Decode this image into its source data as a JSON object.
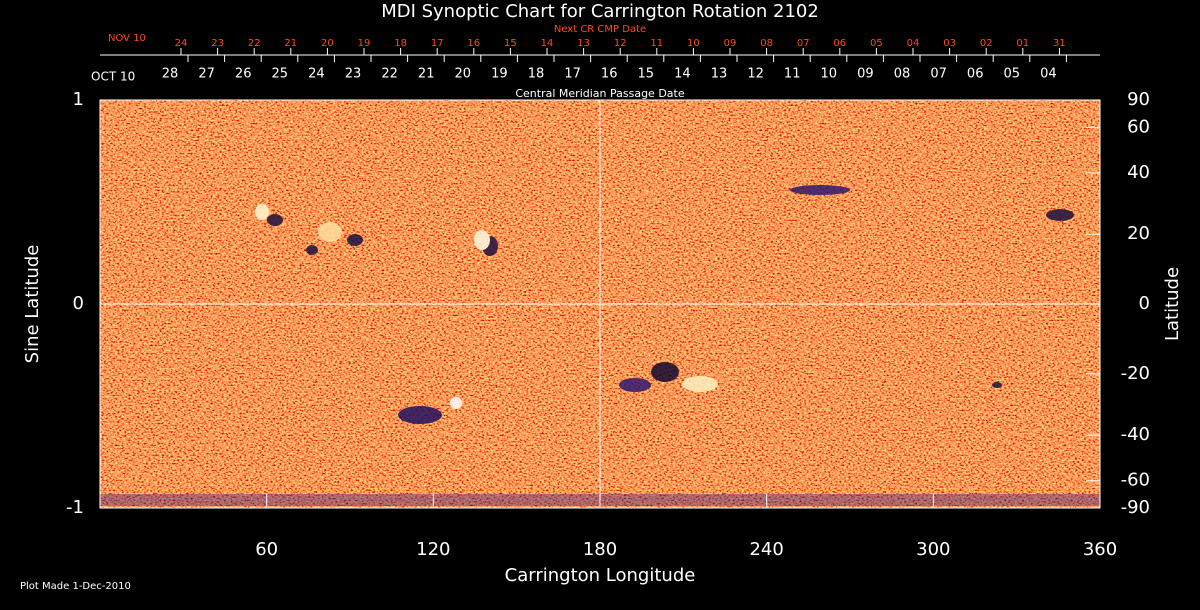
{
  "chart_data": {
    "type": "synoptic",
    "title": "MDI Synoptic Chart for Carrington Rotation 2102",
    "x_label": "Carrington Longitude",
    "y_label": "Sine Latitude",
    "y2_label": "Latitude",
    "xlim": [
      0,
      360
    ],
    "xticks": [
      60,
      120,
      180,
      240,
      300,
      360
    ],
    "ylim": [
      -1,
      1
    ],
    "yticks": [
      -1,
      0,
      1
    ],
    "y2lim": [
      -90,
      90
    ],
    "y2_scale": "sine",
    "y2ticks": [
      90,
      60,
      40,
      20,
      0,
      -20,
      -40,
      -60,
      -90
    ],
    "next_cr_label": "Next CR CMP Date",
    "next_cr_start": "NOV 10",
    "next_cr_dates": [
      "24",
      "23",
      "22",
      "21",
      "20",
      "19",
      "18",
      "17",
      "16",
      "15",
      "14",
      "13",
      "12",
      "11",
      "10",
      "09",
      "08",
      "07",
      "06",
      "05",
      "04",
      "03",
      "02",
      "01",
      "31"
    ],
    "cmp_label": "Central Meridian Passage Date",
    "cmp_start": "OCT 10",
    "cmp_dates": [
      "28",
      "27",
      "26",
      "25",
      "24",
      "23",
      "22",
      "21",
      "20",
      "19",
      "18",
      "17",
      "16",
      "15",
      "14",
      "13",
      "12",
      "11",
      "10",
      "09",
      "08",
      "07",
      "06",
      "05",
      "04"
    ],
    "footer": "Plot Made  1-Dec-2010"
  }
}
